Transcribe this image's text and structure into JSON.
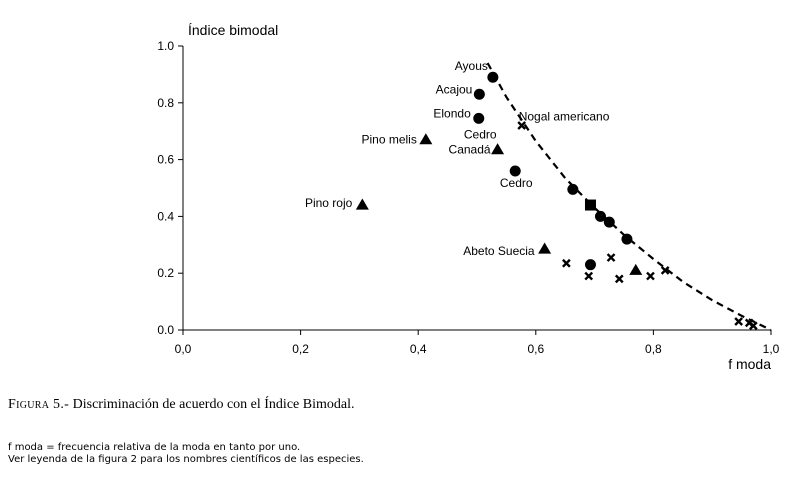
{
  "caption": {
    "prefix": "Figura 5.-",
    "text": "Discriminación de acuerdo con el Índice Bimodal."
  },
  "notes": [
    "f moda = frecuencia relativa de la moda en tanto por uno.",
    "Ver leyenda de la figura 2 para los nombres científicos de las especies."
  ],
  "chart_data": {
    "type": "scatter",
    "title": "",
    "xlabel": "f moda",
    "ylabel": "Índice bimodal",
    "xlim": [
      0,
      1
    ],
    "ylim": [
      0,
      1
    ],
    "x_ticks": [
      "0,0",
      "0,2",
      "0,4",
      "0,6",
      "0,8",
      "1,0"
    ],
    "y_ticks": [
      "0.0",
      "0.2",
      "0.4",
      "0.6",
      "0.8",
      "1.0"
    ],
    "grid": false,
    "legend": "none",
    "series": [
      {
        "marker": "circle",
        "points": [
          {
            "x": 0.527,
            "y": 0.89,
            "label": "Ayous"
          },
          {
            "x": 0.504,
            "y": 0.83,
            "label": "Acajou"
          },
          {
            "x": 0.503,
            "y": 0.745,
            "label": "Elondo"
          },
          {
            "x": 0.565,
            "y": 0.56,
            "label": "Cedro"
          },
          {
            "x": 0.663,
            "y": 0.495,
            "label": ""
          },
          {
            "x": 0.71,
            "y": 0.4,
            "label": ""
          },
          {
            "x": 0.725,
            "y": 0.38,
            "label": ""
          },
          {
            "x": 0.755,
            "y": 0.32,
            "label": ""
          },
          {
            "x": 0.693,
            "y": 0.23,
            "label": ""
          }
        ]
      },
      {
        "marker": "triangle",
        "points": [
          {
            "x": 0.413,
            "y": 0.67,
            "label": "Pino melis"
          },
          {
            "x": 0.535,
            "y": 0.635,
            "label": "Cedro Canadá"
          },
          {
            "x": 0.305,
            "y": 0.44,
            "label": "Pino rojo"
          },
          {
            "x": 0.615,
            "y": 0.285,
            "label": "Abeto Suecia"
          },
          {
            "x": 0.77,
            "y": 0.21,
            "label": ""
          }
        ]
      },
      {
        "marker": "square",
        "points": [
          {
            "x": 0.693,
            "y": 0.44,
            "label": ""
          }
        ]
      },
      {
        "marker": "cross",
        "points": [
          {
            "x": 0.576,
            "y": 0.72,
            "label": "Nogal americano"
          },
          {
            "x": 0.652,
            "y": 0.235,
            "label": ""
          },
          {
            "x": 0.69,
            "y": 0.19,
            "label": ""
          },
          {
            "x": 0.728,
            "y": 0.255,
            "label": ""
          },
          {
            "x": 0.742,
            "y": 0.18,
            "label": ""
          },
          {
            "x": 0.795,
            "y": 0.19,
            "label": ""
          },
          {
            "x": 0.82,
            "y": 0.21,
            "label": ""
          },
          {
            "x": 0.945,
            "y": 0.03,
            "label": ""
          },
          {
            "x": 0.963,
            "y": 0.025,
            "label": ""
          },
          {
            "x": 0.97,
            "y": 0.015,
            "label": ""
          }
        ]
      }
    ],
    "curve": {
      "style": "dashed",
      "x": [
        0.518,
        0.55,
        0.6,
        0.65,
        0.7,
        0.75,
        0.8,
        0.85,
        0.9,
        0.95,
        1.0
      ],
      "y": [
        0.94,
        0.82,
        0.665,
        0.535,
        0.43,
        0.335,
        0.25,
        0.17,
        0.105,
        0.05,
        0.0
      ]
    }
  }
}
